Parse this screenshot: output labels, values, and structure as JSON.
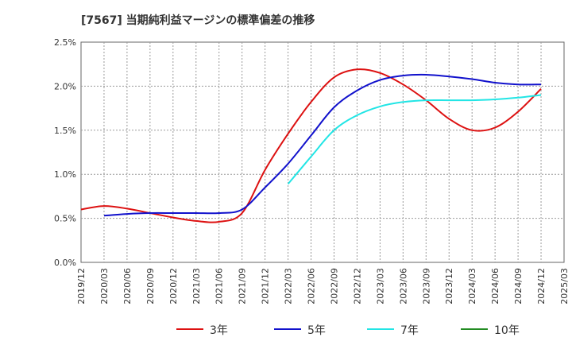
{
  "chart_data": {
    "type": "line",
    "title": "[7567]  当期純利益マージンの標準偏差の推移",
    "xlabel": "",
    "ylabel": "",
    "x": [
      "2019/12",
      "2020/03",
      "2020/06",
      "2020/09",
      "2020/12",
      "2021/03",
      "2021/06",
      "2021/09",
      "2021/12",
      "2022/03",
      "2022/06",
      "2022/09",
      "2022/12",
      "2023/03",
      "2023/06",
      "2023/09",
      "2023/12",
      "2024/03",
      "2024/06",
      "2024/09",
      "2024/12",
      "2025/03"
    ],
    "yticks": [
      "0.0%",
      "0.5%",
      "1.0%",
      "1.5%",
      "2.0%",
      "2.5%"
    ],
    "ylim": [
      0,
      2.5
    ],
    "grid": true,
    "legend_position": "bottom",
    "series": [
      {
        "name": "3年",
        "color": "#dd1111",
        "values": [
          0.6,
          0.64,
          0.61,
          0.56,
          0.51,
          0.47,
          0.46,
          0.56,
          1.05,
          1.46,
          1.82,
          2.1,
          2.19,
          2.15,
          2.02,
          1.84,
          1.63,
          1.5,
          1.53,
          1.71,
          1.97,
          null
        ]
      },
      {
        "name": "5年",
        "color": "#1111cc",
        "values": [
          null,
          0.53,
          0.55,
          0.56,
          0.56,
          0.56,
          0.56,
          0.6,
          0.85,
          1.12,
          1.44,
          1.76,
          1.95,
          2.07,
          2.12,
          2.13,
          2.11,
          2.08,
          2.04,
          2.02,
          2.02,
          null
        ]
      },
      {
        "name": "7年",
        "color": "#22e5e5",
        "values": [
          null,
          null,
          null,
          null,
          null,
          null,
          null,
          null,
          null,
          0.89,
          1.2,
          1.5,
          1.67,
          1.77,
          1.82,
          1.84,
          1.84,
          1.84,
          1.85,
          1.87,
          1.9,
          null
        ]
      },
      {
        "name": "10年",
        "color": "#228b22",
        "values": [
          null,
          null,
          null,
          null,
          null,
          null,
          null,
          null,
          null,
          null,
          null,
          null,
          null,
          null,
          null,
          null,
          null,
          null,
          null,
          null,
          null,
          null
        ]
      }
    ]
  }
}
